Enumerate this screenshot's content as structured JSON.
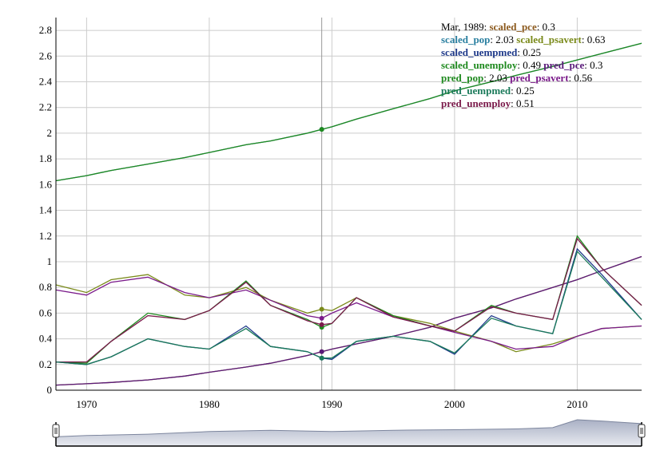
{
  "legend": {
    "date": "Mar, 1989",
    "entries": [
      {
        "name": "scaled_pce",
        "value": "0.3",
        "color": "#8c5a1e"
      },
      {
        "name": "scaled_pop",
        "value": "2.03",
        "color": "#2a7fa0"
      },
      {
        "name": "scaled_psavert",
        "value": "0.63",
        "color": "#7a8a1a"
      },
      {
        "name": "scaled_uempmed",
        "value": "0.25",
        "color": "#1f3a8a"
      },
      {
        "name": "scaled_unemploy",
        "value": "0.49",
        "color": "#1f8a1f"
      },
      {
        "name": "pred_pce",
        "value": "0.3",
        "color": "#5a1a7a"
      },
      {
        "name": "pred_pop",
        "value": "2.03",
        "color": "#1f8a1f"
      },
      {
        "name": "pred_psavert",
        "value": "0.56",
        "color": "#7a1a8a"
      },
      {
        "name": "pred_uempmed",
        "value": "0.25",
        "color": "#1a7a5a"
      },
      {
        "name": "pred_unemploy",
        "value": "0.51",
        "color": "#7a1a4a"
      }
    ]
  },
  "chart_data": {
    "type": "line",
    "xlim": [
      1967.5,
      2015.25
    ],
    "ylim": [
      0,
      2.9
    ],
    "x_ticks": [
      "1970",
      "1980",
      "1990",
      "2000",
      "2010"
    ],
    "y_ticks": [
      "0",
      "0.2",
      "0.4",
      "0.6",
      "0.8",
      "1",
      "1.2",
      "1.4",
      "1.6",
      "1.8",
      "2",
      "2.2",
      "2.4",
      "2.6",
      "2.8"
    ],
    "grid": true,
    "highlight_x": 1989.17,
    "x": [
      1967.5,
      1970,
      1972,
      1975,
      1978,
      1980,
      1983,
      1985,
      1988,
      1989.17,
      1990,
      1992,
      1995,
      1998,
      2000,
      2003,
      2005,
      2008,
      2010,
      2012,
      2015.25
    ],
    "series": [
      {
        "name": "scaled_pop",
        "color": "#2a7fa0",
        "values": [
          1.63,
          1.67,
          1.71,
          1.76,
          1.81,
          1.85,
          1.91,
          1.94,
          2.0,
          2.03,
          2.05,
          2.11,
          2.19,
          2.27,
          2.33,
          2.4,
          2.45,
          2.52,
          2.57,
          2.62,
          2.7
        ]
      },
      {
        "name": "pred_pop",
        "color": "#1f8a1f",
        "values": [
          1.63,
          1.67,
          1.71,
          1.76,
          1.81,
          1.85,
          1.91,
          1.94,
          2.0,
          2.03,
          2.05,
          2.11,
          2.19,
          2.27,
          2.33,
          2.4,
          2.45,
          2.52,
          2.57,
          2.62,
          2.7
        ]
      },
      {
        "name": "scaled_pce",
        "color": "#8c5a1e",
        "values": [
          0.04,
          0.05,
          0.06,
          0.08,
          0.11,
          0.14,
          0.18,
          0.21,
          0.27,
          0.3,
          0.32,
          0.36,
          0.42,
          0.49,
          0.56,
          0.64,
          0.71,
          0.8,
          0.86,
          0.93,
          1.04
        ]
      },
      {
        "name": "pred_pce",
        "color": "#5a1a7a",
        "values": [
          0.04,
          0.05,
          0.06,
          0.08,
          0.11,
          0.14,
          0.18,
          0.21,
          0.27,
          0.3,
          0.32,
          0.36,
          0.42,
          0.49,
          0.56,
          0.64,
          0.71,
          0.8,
          0.86,
          0.93,
          1.04
        ]
      },
      {
        "name": "scaled_psavert",
        "color": "#7a8a1a",
        "values": [
          0.82,
          0.76,
          0.86,
          0.9,
          0.74,
          0.72,
          0.8,
          0.7,
          0.6,
          0.63,
          0.62,
          0.72,
          0.58,
          0.52,
          0.46,
          0.38,
          0.3,
          0.36,
          0.42,
          0.48,
          0.5
        ]
      },
      {
        "name": "pred_psavert",
        "color": "#7a1a8a",
        "values": [
          0.78,
          0.74,
          0.84,
          0.88,
          0.76,
          0.72,
          0.78,
          0.7,
          0.58,
          0.56,
          0.6,
          0.68,
          0.57,
          0.5,
          0.45,
          0.38,
          0.32,
          0.34,
          0.42,
          0.48,
          0.5
        ]
      },
      {
        "name": "scaled_unemploy",
        "color": "#1f8a1f",
        "values": [
          0.22,
          0.21,
          0.38,
          0.6,
          0.55,
          0.62,
          0.85,
          0.66,
          0.55,
          0.49,
          0.52,
          0.72,
          0.58,
          0.5,
          0.46,
          0.66,
          0.6,
          0.55,
          1.2,
          0.95,
          0.66
        ]
      },
      {
        "name": "pred_unemploy",
        "color": "#7a1a4a",
        "values": [
          0.22,
          0.22,
          0.38,
          0.58,
          0.55,
          0.62,
          0.84,
          0.66,
          0.54,
          0.51,
          0.52,
          0.72,
          0.57,
          0.5,
          0.46,
          0.65,
          0.6,
          0.55,
          1.18,
          0.95,
          0.66
        ]
      },
      {
        "name": "scaled_uempmed",
        "color": "#1f3a8a",
        "values": [
          0.22,
          0.2,
          0.26,
          0.4,
          0.34,
          0.32,
          0.5,
          0.34,
          0.3,
          0.25,
          0.24,
          0.38,
          0.42,
          0.38,
          0.28,
          0.58,
          0.5,
          0.44,
          1.1,
          0.9,
          0.55
        ]
      },
      {
        "name": "pred_uempmed",
        "color": "#1a7a5a",
        "values": [
          0.22,
          0.2,
          0.26,
          0.4,
          0.34,
          0.32,
          0.48,
          0.34,
          0.3,
          0.25,
          0.25,
          0.38,
          0.42,
          0.38,
          0.29,
          0.56,
          0.5,
          0.44,
          1.08,
          0.88,
          0.55
        ]
      }
    ],
    "range_selector": {
      "x": [
        1967.5,
        1970,
        1975,
        1980,
        1985,
        1990,
        1995,
        2000,
        2005,
        2008,
        2010,
        2012,
        2015.25
      ],
      "values": [
        0.35,
        0.4,
        0.45,
        0.55,
        0.6,
        0.55,
        0.6,
        0.62,
        0.65,
        0.7,
        1.0,
        0.95,
        0.85
      ]
    }
  }
}
